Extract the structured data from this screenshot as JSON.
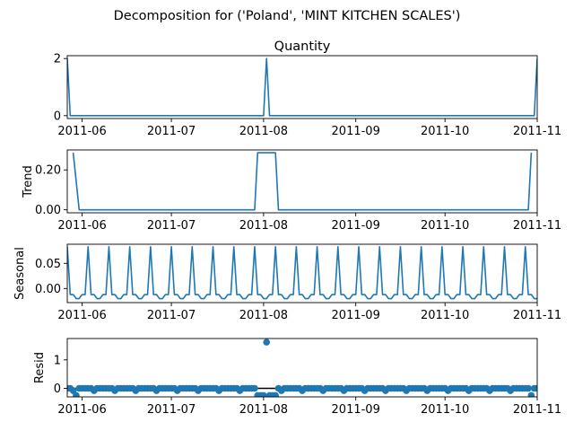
{
  "title": "Decomposition for ('Poland', 'MINT KITCHEN SCALES')",
  "colors": {
    "line": "#1f77b4",
    "axis": "#000000",
    "zero_line": "#000000"
  },
  "chart_data": [
    {
      "type": "line",
      "id": "observed",
      "title": "Quantity",
      "ylabel": "",
      "ylim": [
        -0.1,
        2.1
      ],
      "yticks": [
        0,
        2
      ],
      "x_range": [
        "2011-05-27",
        "2011-11-01"
      ],
      "xticks": [
        "2011-06",
        "2011-07",
        "2011-08",
        "2011-09",
        "2011-10",
        "2011-11"
      ],
      "baseline": 0,
      "points": [
        {
          "x": "2011-05-27",
          "y": 2
        },
        {
          "x": "2011-05-28",
          "y": 0
        },
        {
          "x": "2011-08-01",
          "y": 0
        },
        {
          "x": "2011-08-02",
          "y": 2
        },
        {
          "x": "2011-08-03",
          "y": 0
        },
        {
          "x": "2011-10-31",
          "y": 0
        },
        {
          "x": "2011-11-01",
          "y": 2
        }
      ]
    },
    {
      "type": "line",
      "id": "trend",
      "title": "",
      "ylabel": "Trend",
      "ylim": [
        -0.015,
        0.3
      ],
      "yticks": [
        0.0,
        0.2
      ],
      "x_range": [
        "2011-05-27",
        "2011-11-01"
      ],
      "xticks": [
        "2011-06",
        "2011-07",
        "2011-08",
        "2011-09",
        "2011-10",
        "2011-11"
      ],
      "points": [
        {
          "x": "2011-05-29",
          "y": 0.286
        },
        {
          "x": "2011-05-31",
          "y": 0
        },
        {
          "x": "2011-07-29",
          "y": 0
        },
        {
          "x": "2011-07-30",
          "y": 0.286
        },
        {
          "x": "2011-08-05",
          "y": 0.286
        },
        {
          "x": "2011-08-06",
          "y": 0
        },
        {
          "x": "2011-10-29",
          "y": 0
        },
        {
          "x": "2011-10-30",
          "y": 0.286
        }
      ]
    },
    {
      "type": "line",
      "id": "seasonal",
      "title": "",
      "ylabel": "Seasonal",
      "ylim": [
        -0.028,
        0.088
      ],
      "yticks": [
        0.0,
        0.05
      ],
      "x_range": [
        "2011-05-27",
        "2011-11-01"
      ],
      "xticks": [
        "2011-06",
        "2011-07",
        "2011-08",
        "2011-09",
        "2011-10",
        "2011-11"
      ],
      "period_days": 7,
      "pattern": [
        0.083,
        -0.012,
        -0.012,
        -0.02,
        -0.02,
        -0.012,
        -0.012
      ],
      "start": "2011-05-27"
    },
    {
      "type": "scatter",
      "id": "resid",
      "title": "",
      "ylabel": "Resid",
      "ylim": [
        -0.3,
        1.75
      ],
      "yticks": [
        0,
        1
      ],
      "x_range": [
        "2011-05-27",
        "2011-11-01"
      ],
      "xticks": [
        "2011-06",
        "2011-07",
        "2011-08",
        "2011-09",
        "2011-10",
        "2011-11"
      ],
      "baseline": 0,
      "start": "2011-05-27",
      "end": "2011-11-01",
      "period_days": 7,
      "default_pattern": [
        0.0,
        0.0,
        -0.08,
        0.0,
        0.0,
        0.0,
        0.0
      ],
      "overrides": [
        {
          "x": "2011-05-30",
          "y": -0.25
        },
        {
          "x": "2011-07-30",
          "y": -0.25
        },
        {
          "x": "2011-07-31",
          "y": -0.25
        },
        {
          "x": "2011-08-01",
          "y": -0.25
        },
        {
          "x": "2011-08-02",
          "y": 1.62
        },
        {
          "x": "2011-08-03",
          "y": -0.25
        },
        {
          "x": "2011-08-04",
          "y": -0.25
        },
        {
          "x": "2011-08-05",
          "y": -0.25
        },
        {
          "x": "2011-10-30",
          "y": -0.25
        }
      ]
    }
  ]
}
